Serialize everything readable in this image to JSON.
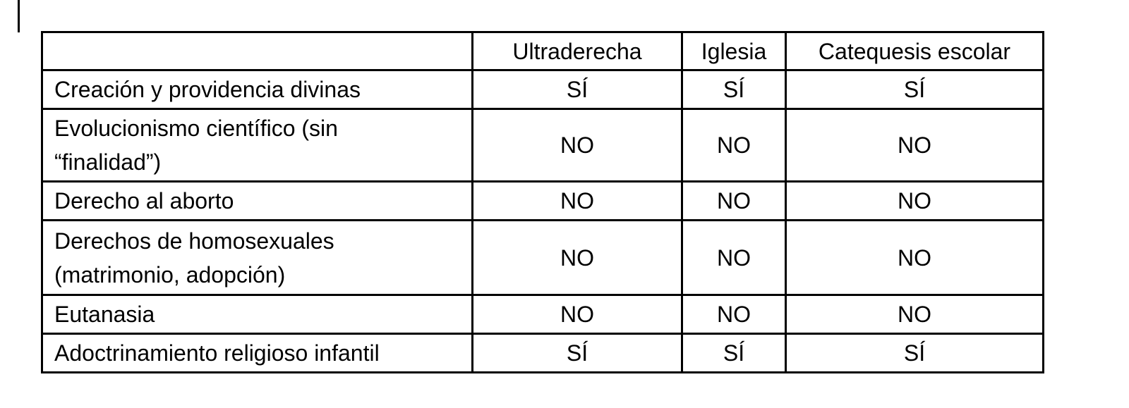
{
  "page": {
    "background_color": "#ffffff",
    "border_color": "#000000",
    "text_color": "#000000"
  },
  "table": {
    "columns": [
      "Ultraderecha",
      "Iglesia",
      "Catequesis escolar"
    ],
    "rows": [
      {
        "label": "Creación y providencia divinas",
        "cells": [
          "SÍ",
          "SÍ",
          "SÍ"
        ]
      },
      {
        "label": "Evolucionismo científico (sin\n“finalidad”)",
        "cells": [
          "NO",
          "NO",
          "NO"
        ]
      },
      {
        "label": "Derecho al aborto",
        "cells": [
          "NO",
          "NO",
          "NO"
        ]
      },
      {
        "label": "Derechos de homosexuales\n(matrimonio, adopción)",
        "cells": [
          "NO",
          "NO",
          "NO"
        ]
      },
      {
        "label": "Eutanasia",
        "cells": [
          "NO",
          "NO",
          "NO"
        ]
      },
      {
        "label": "Adoctrinamiento religioso infantil",
        "cells": [
          "SÍ",
          "SÍ",
          "SÍ"
        ]
      }
    ]
  }
}
